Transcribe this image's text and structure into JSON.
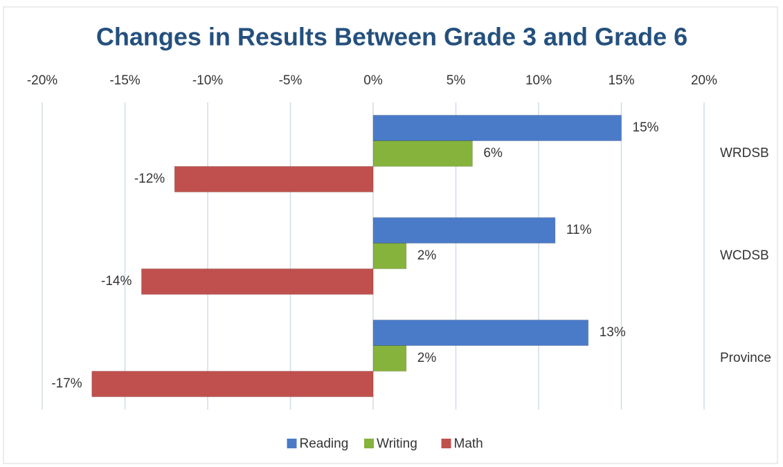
{
  "chart_data": {
    "type": "hbar",
    "title": "Changes in Results Between Grade 3 and Grade 6",
    "categories": [
      "WRDSB",
      "WCDSB",
      "Province"
    ],
    "series": [
      {
        "name": "Reading",
        "color": "#4a7bc8",
        "values": [
          15,
          11,
          13
        ],
        "value_labels": [
          "15%",
          "11%",
          "13%"
        ]
      },
      {
        "name": "Writing",
        "color": "#86b33c",
        "values": [
          6,
          2,
          2
        ],
        "value_labels": [
          "6%",
          "2%",
          "2%"
        ]
      },
      {
        "name": "Math",
        "color": "#c0504d",
        "values": [
          -12,
          -14,
          -17
        ],
        "value_labels": [
          "-12%",
          "-14%",
          "-17%"
        ]
      }
    ],
    "xlim": [
      -20,
      20
    ],
    "xticks": [
      {
        "value": -20,
        "label": "-20%"
      },
      {
        "value": -15,
        "label": "-15%"
      },
      {
        "value": -10,
        "label": "-10%"
      },
      {
        "value": -5,
        "label": "-5%"
      },
      {
        "value": 0,
        "label": "0%"
      },
      {
        "value": 5,
        "label": "5%"
      },
      {
        "value": 10,
        "label": "10%"
      },
      {
        "value": 15,
        "label": "15%"
      },
      {
        "value": 20,
        "label": "20%"
      }
    ],
    "grid": true,
    "legend": "bottom"
  }
}
